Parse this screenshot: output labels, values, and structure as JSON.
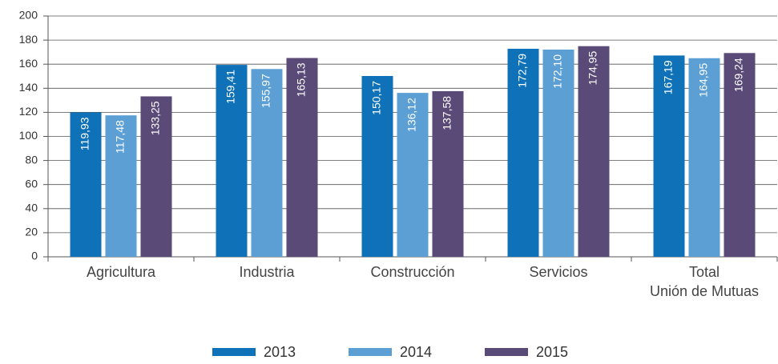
{
  "chart_data": {
    "type": "bar",
    "categories": [
      "Agricultura",
      "Industria",
      "Construcción",
      "Servicios",
      "Total\nUnión de Mutuas"
    ],
    "series": [
      {
        "name": "2013",
        "color": "#0f72b8",
        "values": [
          119.93,
          159.41,
          150.17,
          172.79,
          167.19
        ],
        "value_labels": [
          "119,93",
          "159,41",
          "150,17",
          "172,79",
          "167,19"
        ]
      },
      {
        "name": "2014",
        "color": "#5b9fd4",
        "values": [
          117.48,
          155.97,
          136.12,
          172.1,
          164.95
        ],
        "value_labels": [
          "117,48",
          "155,97",
          "136,12",
          "172,10",
          "164,95"
        ]
      },
      {
        "name": "2015",
        "color": "#5a4a78",
        "values": [
          133.25,
          165.13,
          137.58,
          174.95,
          169.24
        ],
        "value_labels": [
          "133,25",
          "165,13",
          "137,58",
          "174,95",
          "169,24"
        ]
      }
    ],
    "ylim": [
      0,
      200
    ],
    "yticks": [
      0,
      20,
      40,
      60,
      80,
      100,
      120,
      140,
      160,
      180,
      200
    ],
    "grid": true,
    "legend": "bottom"
  }
}
